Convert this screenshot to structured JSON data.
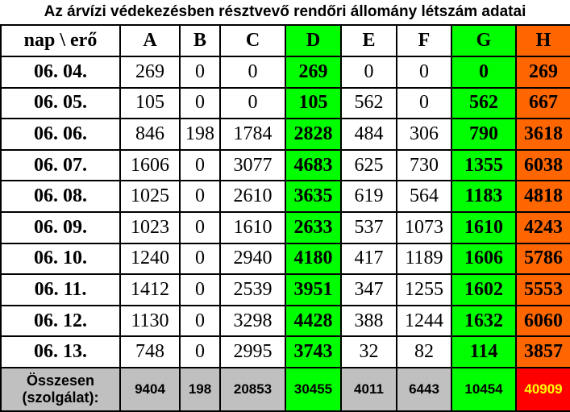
{
  "title": "Az árvízi védekezésben résztvevő rendőri állomány létszám adatai",
  "header": {
    "corner": "nap \\ erő",
    "columns": [
      "A",
      "B",
      "C",
      "D",
      "E",
      "F",
      "G",
      "H"
    ]
  },
  "colors": {
    "highlight_green": "#00ff00",
    "highlight_orange": "#ff6600",
    "total_grey": "#c0c0c0",
    "grand_total_red": "#ff0000",
    "grand_total_text": "#ffff00"
  },
  "rows": [
    {
      "day": "06. 04.",
      "values": [
        "269",
        "0",
        "0",
        "269",
        "0",
        "0",
        "0",
        "269"
      ]
    },
    {
      "day": "06. 05.",
      "values": [
        "105",
        "0",
        "0",
        "105",
        "562",
        "0",
        "562",
        "667"
      ]
    },
    {
      "day": "06. 06.",
      "values": [
        "846",
        "198",
        "1784",
        "2828",
        "484",
        "306",
        "790",
        "3618"
      ]
    },
    {
      "day": "06. 07.",
      "values": [
        "1606",
        "0",
        "3077",
        "4683",
        "625",
        "730",
        "1355",
        "6038"
      ]
    },
    {
      "day": "06. 08.",
      "values": [
        "1025",
        "0",
        "2610",
        "3635",
        "619",
        "564",
        "1183",
        "4818"
      ]
    },
    {
      "day": "06. 09.",
      "values": [
        "1023",
        "0",
        "1610",
        "2633",
        "537",
        "1073",
        "1610",
        "4243"
      ]
    },
    {
      "day": "06. 10.",
      "values": [
        "1240",
        "0",
        "2940",
        "4180",
        "417",
        "1189",
        "1606",
        "5786"
      ]
    },
    {
      "day": "06. 11.",
      "values": [
        "1412",
        "0",
        "2539",
        "3951",
        "347",
        "1255",
        "1602",
        "5553"
      ]
    },
    {
      "day": "06. 12.",
      "values": [
        "1130",
        "0",
        "3298",
        "4428",
        "388",
        "1244",
        "1632",
        "6060"
      ]
    },
    {
      "day": "06. 13.",
      "values": [
        "748",
        "0",
        "2995",
        "3743",
        "32",
        "82",
        "114",
        "3857"
      ]
    }
  ],
  "total": {
    "label_line1": "Összesen",
    "label_line2": "(szolgálat):",
    "values": [
      "9404",
      "198",
      "20853",
      "30455",
      "4011",
      "6443",
      "10454",
      "40909"
    ]
  }
}
